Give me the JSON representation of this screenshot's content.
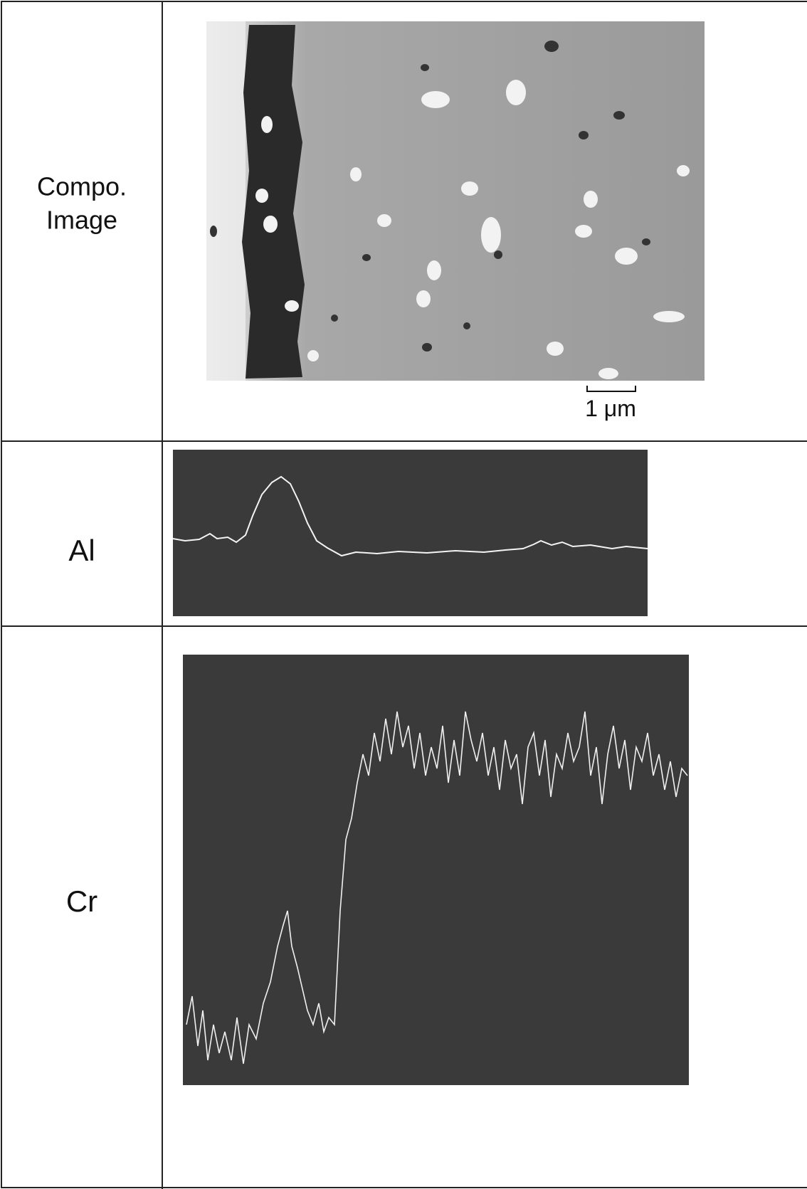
{
  "rows": [
    {
      "label_lines": [
        "Compo.",
        "Image"
      ]
    },
    {
      "label_lines": [
        "Al"
      ]
    },
    {
      "label_lines": [
        "Cr"
      ]
    }
  ],
  "scale_bar": "1 μm"
}
